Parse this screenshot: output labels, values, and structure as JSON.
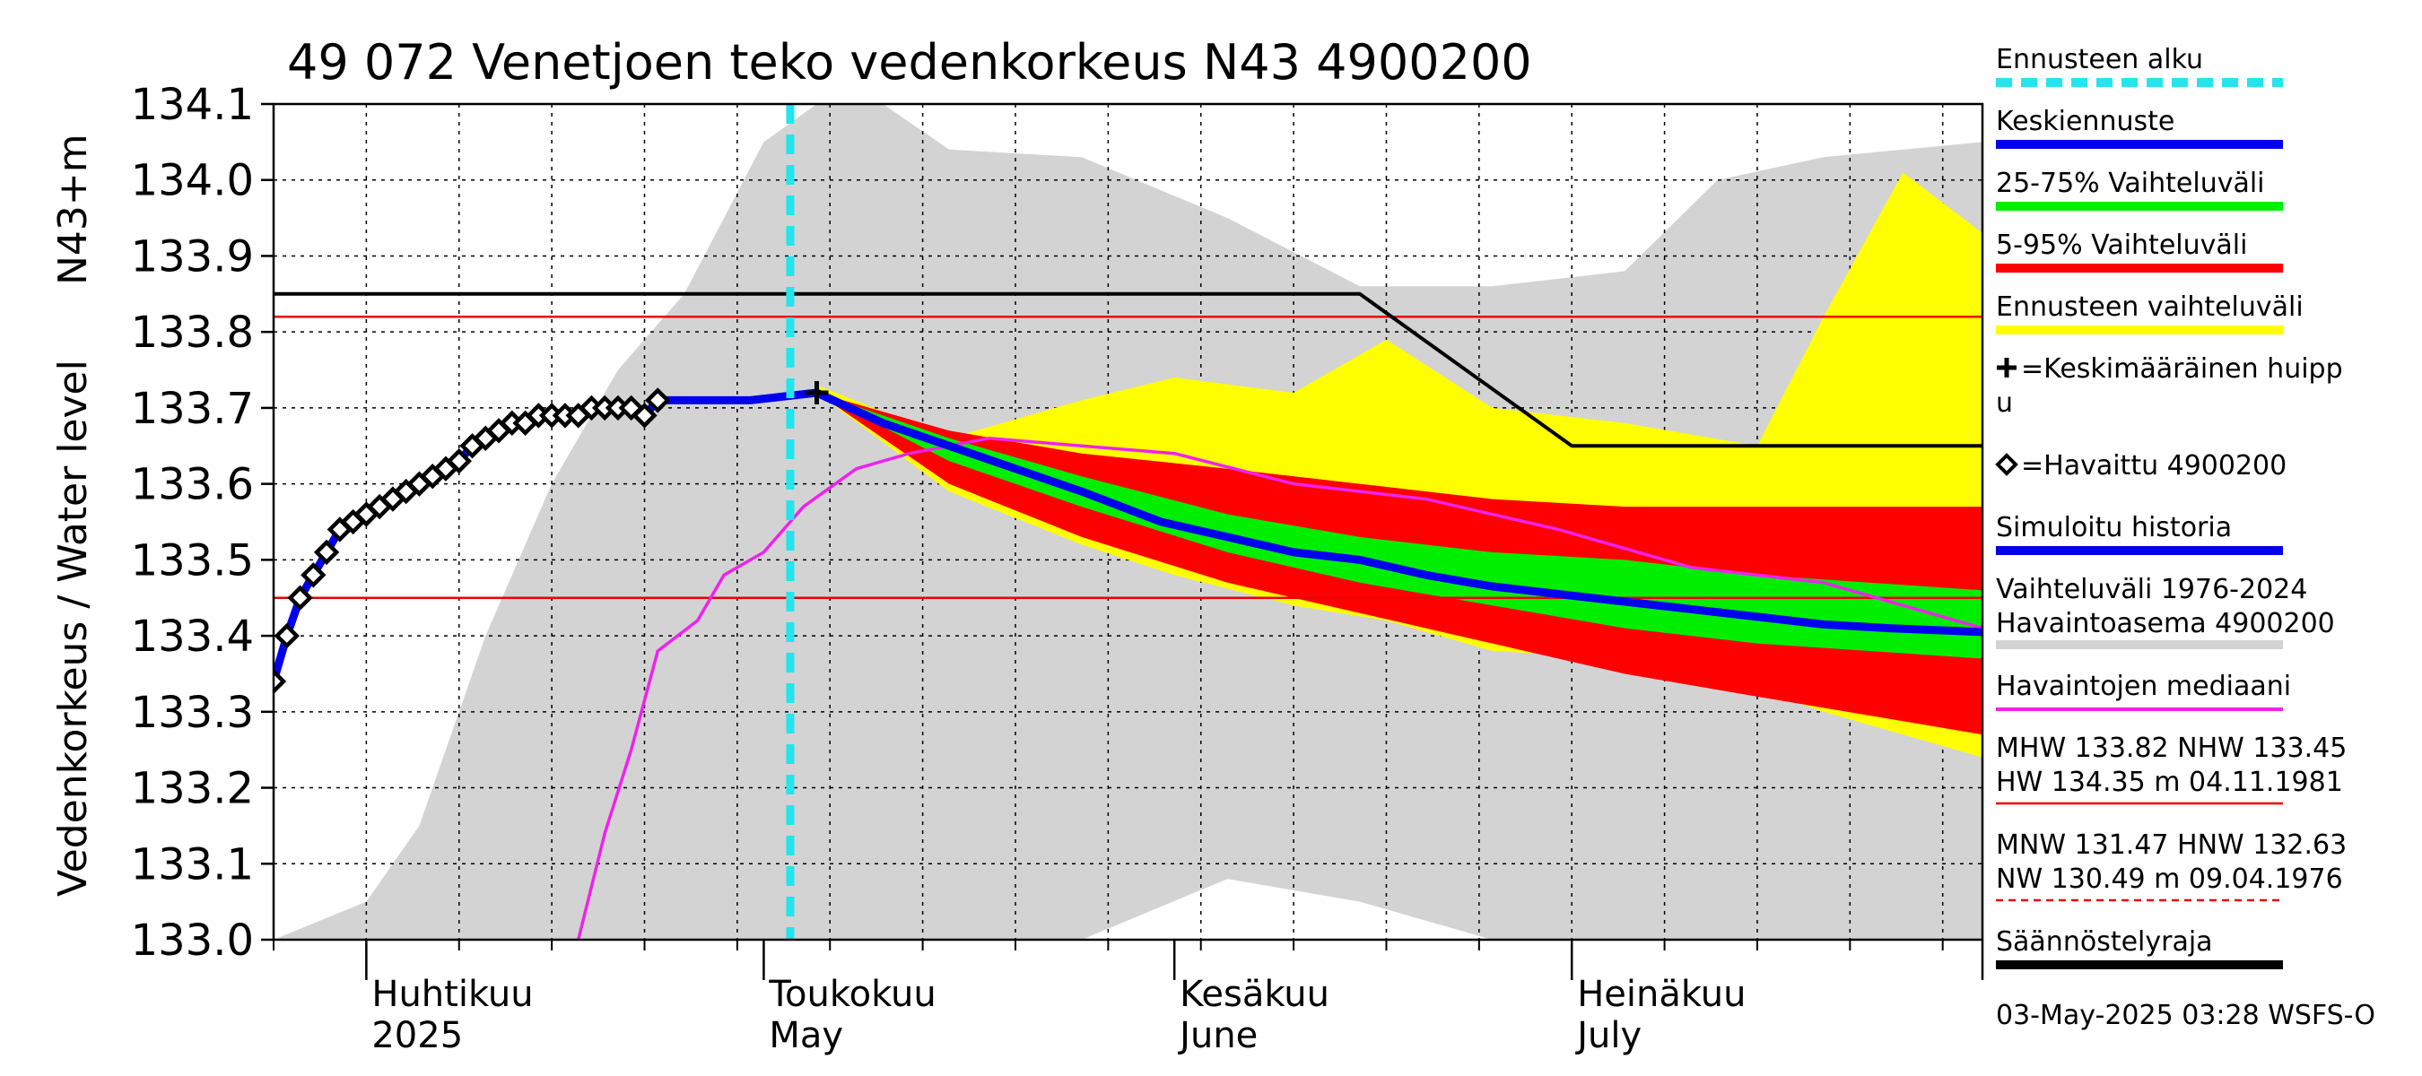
{
  "chart_data": {
    "type": "area",
    "title": "49 072 Venetjoen teko vedenkorkeus N43 4900200",
    "ylabel_primary": "Vedenkorkeus / Water level",
    "ylabel_unit": "N43+m",
    "ylim": [
      133.0,
      134.1
    ],
    "yticks": [
      "133.0",
      "133.1",
      "133.2",
      "133.3",
      "133.4",
      "133.5",
      "133.6",
      "133.7",
      "133.8",
      "133.9",
      "134.0",
      "134.1"
    ],
    "x_range": [
      "2025-03-25",
      "2025-08-01"
    ],
    "month_labels": [
      {
        "fi": "Huhtikuu",
        "en": "2025",
        "date": "2025-04-01"
      },
      {
        "fi": "Toukokuu",
        "en": "May",
        "date": "2025-05-01"
      },
      {
        "fi": "Kesäkuu",
        "en": "June",
        "date": "2025-06-01"
      },
      {
        "fi": "Heinäkuu",
        "en": "July",
        "date": "2025-07-01"
      }
    ],
    "grid": true,
    "forecast_start": "2025-05-03",
    "colors": {
      "forecast_start": "#22e5ee",
      "mean_forecast": "#0000ee",
      "range_25_75": "#00ee00",
      "range_5_95": "#ff0000",
      "forecast_range": "#ffff00",
      "observed": "#000000",
      "simulated_history": "#0000ee",
      "historical_range": "#d3d3d3",
      "median": "#ee22ee",
      "reference_lines": "#ee0000",
      "regulation": "#000000"
    },
    "reference_lines": {
      "MHW": 133.82,
      "NHW": 133.45
    },
    "regulation_limit": [
      {
        "x": "2025-03-25",
        "y": 133.85
      },
      {
        "x": "2025-06-15",
        "y": 133.85
      },
      {
        "x": "2025-07-01",
        "y": 133.65
      },
      {
        "x": "2025-08-01",
        "y": 133.65
      }
    ],
    "observed": [
      {
        "x": "2025-03-25",
        "y": 133.34
      },
      {
        "x": "2025-03-26",
        "y": 133.4
      },
      {
        "x": "2025-03-27",
        "y": 133.45
      },
      {
        "x": "2025-03-28",
        "y": 133.48
      },
      {
        "x": "2025-03-29",
        "y": 133.51
      },
      {
        "x": "2025-03-30",
        "y": 133.54
      },
      {
        "x": "2025-03-31",
        "y": 133.55
      },
      {
        "x": "2025-04-01",
        "y": 133.56
      },
      {
        "x": "2025-04-02",
        "y": 133.57
      },
      {
        "x": "2025-04-03",
        "y": 133.58
      },
      {
        "x": "2025-04-04",
        "y": 133.59
      },
      {
        "x": "2025-04-05",
        "y": 133.6
      },
      {
        "x": "2025-04-06",
        "y": 133.61
      },
      {
        "x": "2025-04-07",
        "y": 133.62
      },
      {
        "x": "2025-04-08",
        "y": 133.63
      },
      {
        "x": "2025-04-09",
        "y": 133.65
      },
      {
        "x": "2025-04-10",
        "y": 133.66
      },
      {
        "x": "2025-04-11",
        "y": 133.67
      },
      {
        "x": "2025-04-12",
        "y": 133.68
      },
      {
        "x": "2025-04-13",
        "y": 133.68
      },
      {
        "x": "2025-04-14",
        "y": 133.69
      },
      {
        "x": "2025-04-15",
        "y": 133.69
      },
      {
        "x": "2025-04-16",
        "y": 133.69
      },
      {
        "x": "2025-04-17",
        "y": 133.69
      },
      {
        "x": "2025-04-18",
        "y": 133.7
      },
      {
        "x": "2025-04-19",
        "y": 133.7
      },
      {
        "x": "2025-04-20",
        "y": 133.7
      },
      {
        "x": "2025-04-21",
        "y": 133.7
      },
      {
        "x": "2025-04-22",
        "y": 133.69
      },
      {
        "x": "2025-04-23",
        "y": 133.71
      }
    ],
    "mean_peak": {
      "x": "2025-05-05",
      "y": 133.72
    },
    "mean_forecast": [
      {
        "x": "2025-04-23",
        "y": 133.71
      },
      {
        "x": "2025-04-30",
        "y": 133.71
      },
      {
        "x": "2025-05-05",
        "y": 133.72
      },
      {
        "x": "2025-05-10",
        "y": 133.68
      },
      {
        "x": "2025-05-15",
        "y": 133.65
      },
      {
        "x": "2025-05-20",
        "y": 133.62
      },
      {
        "x": "2025-05-25",
        "y": 133.59
      },
      {
        "x": "2025-05-31",
        "y": 133.55
      },
      {
        "x": "2025-06-05",
        "y": 133.53
      },
      {
        "x": "2025-06-10",
        "y": 133.51
      },
      {
        "x": "2025-06-15",
        "y": 133.5
      },
      {
        "x": "2025-06-20",
        "y": 133.48
      },
      {
        "x": "2025-06-25",
        "y": 133.465
      },
      {
        "x": "2025-06-30",
        "y": 133.455
      },
      {
        "x": "2025-07-05",
        "y": 133.445
      },
      {
        "x": "2025-07-10",
        "y": 133.435
      },
      {
        "x": "2025-07-15",
        "y": 133.425
      },
      {
        "x": "2025-07-20",
        "y": 133.415
      },
      {
        "x": "2025-07-25",
        "y": 133.41
      },
      {
        "x": "2025-08-01",
        "y": 133.405
      }
    ],
    "range_25_75": [
      {
        "x": "2025-05-05",
        "lo": 133.72,
        "hi": 133.72
      },
      {
        "x": "2025-05-15",
        "lo": 133.63,
        "hi": 133.66
      },
      {
        "x": "2025-05-25",
        "lo": 133.57,
        "hi": 133.61
      },
      {
        "x": "2025-06-05",
        "lo": 133.51,
        "hi": 133.56
      },
      {
        "x": "2025-06-15",
        "lo": 133.47,
        "hi": 133.53
      },
      {
        "x": "2025-06-25",
        "lo": 133.44,
        "hi": 133.51
      },
      {
        "x": "2025-07-05",
        "lo": 133.41,
        "hi": 133.5
      },
      {
        "x": "2025-07-15",
        "lo": 133.39,
        "hi": 133.48
      },
      {
        "x": "2025-08-01",
        "lo": 133.37,
        "hi": 133.46
      }
    ],
    "range_5_95": [
      {
        "x": "2025-05-05",
        "lo": 133.72,
        "hi": 133.72
      },
      {
        "x": "2025-05-15",
        "lo": 133.6,
        "hi": 133.67
      },
      {
        "x": "2025-05-25",
        "lo": 133.53,
        "hi": 133.64
      },
      {
        "x": "2025-06-05",
        "lo": 133.47,
        "hi": 133.62
      },
      {
        "x": "2025-06-15",
        "lo": 133.43,
        "hi": 133.6
      },
      {
        "x": "2025-06-25",
        "lo": 133.39,
        "hi": 133.58
      },
      {
        "x": "2025-07-05",
        "lo": 133.35,
        "hi": 133.57
      },
      {
        "x": "2025-07-15",
        "lo": 133.32,
        "hi": 133.57
      },
      {
        "x": "2025-08-01",
        "lo": 133.27,
        "hi": 133.57
      }
    ],
    "forecast_range": [
      {
        "x": "2025-05-05",
        "lo": 133.72,
        "hi": 133.73
      },
      {
        "x": "2025-05-15",
        "lo": 133.59,
        "hi": 133.66
      },
      {
        "x": "2025-05-25",
        "lo": 133.52,
        "hi": 133.71
      },
      {
        "x": "2025-06-01",
        "lo": 133.48,
        "hi": 133.74
      },
      {
        "x": "2025-06-10",
        "lo": 133.44,
        "hi": 133.72
      },
      {
        "x": "2025-06-17",
        "lo": 133.42,
        "hi": 133.79
      },
      {
        "x": "2025-06-25",
        "lo": 133.38,
        "hi": 133.7
      },
      {
        "x": "2025-07-05",
        "lo": 133.37,
        "hi": 133.68
      },
      {
        "x": "2025-07-15",
        "lo": 133.33,
        "hi": 133.65
      },
      {
        "x": "2025-07-20",
        "lo": 133.3,
        "hi": 133.82
      },
      {
        "x": "2025-07-26",
        "lo": 133.27,
        "hi": 134.01
      },
      {
        "x": "2025-08-01",
        "lo": 133.24,
        "hi": 133.93
      }
    ],
    "historical_range": [
      {
        "x": "2025-03-25",
        "lo": 133.0,
        "hi": 133.0
      },
      {
        "x": "2025-04-01",
        "lo": 133.0,
        "hi": 133.05
      },
      {
        "x": "2025-04-05",
        "lo": 133.0,
        "hi": 133.15
      },
      {
        "x": "2025-04-10",
        "lo": 133.0,
        "hi": 133.4
      },
      {
        "x": "2025-04-15",
        "lo": 133.0,
        "hi": 133.6
      },
      {
        "x": "2025-04-20",
        "lo": 133.0,
        "hi": 133.75
      },
      {
        "x": "2025-04-25",
        "lo": 133.0,
        "hi": 133.85
      },
      {
        "x": "2025-05-01",
        "lo": 133.0,
        "hi": 134.05
      },
      {
        "x": "2025-05-05",
        "lo": 133.0,
        "hi": 134.1
      },
      {
        "x": "2025-05-10",
        "lo": 133.0,
        "hi": 134.1
      },
      {
        "x": "2025-05-15",
        "lo": 133.0,
        "hi": 134.04
      },
      {
        "x": "2025-05-25",
        "lo": 133.0,
        "hi": 134.03
      },
      {
        "x": "2025-06-05",
        "lo": 133.08,
        "hi": 133.95
      },
      {
        "x": "2025-06-15",
        "lo": 133.05,
        "hi": 133.86
      },
      {
        "x": "2025-06-25",
        "lo": 133.0,
        "hi": 133.86
      },
      {
        "x": "2025-07-05",
        "lo": 133.0,
        "hi": 133.88
      },
      {
        "x": "2025-07-12",
        "lo": 133.0,
        "hi": 134.0
      },
      {
        "x": "2025-07-20",
        "lo": 133.0,
        "hi": 134.03
      },
      {
        "x": "2025-08-01",
        "lo": 133.0,
        "hi": 134.05
      }
    ],
    "median": [
      {
        "x": "2025-04-17",
        "y": 133.0
      },
      {
        "x": "2025-04-19",
        "y": 133.14
      },
      {
        "x": "2025-04-21",
        "y": 133.25
      },
      {
        "x": "2025-04-23",
        "y": 133.38
      },
      {
        "x": "2025-04-26",
        "y": 133.42
      },
      {
        "x": "2025-04-28",
        "y": 133.48
      },
      {
        "x": "2025-05-01",
        "y": 133.51
      },
      {
        "x": "2025-05-04",
        "y": 133.57
      },
      {
        "x": "2025-05-08",
        "y": 133.62
      },
      {
        "x": "2025-05-12",
        "y": 133.64
      },
      {
        "x": "2025-05-18",
        "y": 133.66
      },
      {
        "x": "2025-05-25",
        "y": 133.65
      },
      {
        "x": "2025-06-01",
        "y": 133.64
      },
      {
        "x": "2025-06-10",
        "y": 133.6
      },
      {
        "x": "2025-06-20",
        "y": 133.58
      },
      {
        "x": "2025-06-30",
        "y": 133.54
      },
      {
        "x": "2025-07-10",
        "y": 133.49
      },
      {
        "x": "2025-07-20",
        "y": 133.47
      },
      {
        "x": "2025-07-28",
        "y": 133.43
      },
      {
        "x": "2025-08-01",
        "y": 133.41
      }
    ],
    "legend": [
      {
        "label": "Ennusteen alku",
        "style": "dash",
        "color": "#22e5ee"
      },
      {
        "label": "Keskiennuste",
        "style": "line",
        "color": "#0000ee"
      },
      {
        "label": "25-75% Vaihteluväli",
        "style": "line",
        "color": "#00ee00"
      },
      {
        "label": "5-95% Vaihteluväli",
        "style": "line",
        "color": "#ff0000"
      },
      {
        "label": "Ennusteen vaihteluväli",
        "style": "line",
        "color": "#ffff00"
      },
      {
        "label": "=Keskimääräinen huipp",
        "label2": "u",
        "style": "plus",
        "color": "#000000"
      },
      {
        "label": "=Havaittu 4900200",
        "style": "diamond",
        "color": "#000000"
      },
      {
        "label": "Simuloitu historia",
        "style": "line",
        "color": "#0000ee"
      },
      {
        "label": "Vaihteluväli 1976-2024",
        "label2": " Havaintoasema 4900200",
        "style": "line",
        "color": "#d3d3d3"
      },
      {
        "label": "Havaintojen mediaani",
        "style": "thin",
        "color": "#ee22ee"
      },
      {
        "label": "MHW 133.82 NHW 133.45",
        "label2": "HW 134.35 m 04.11.1981",
        "style": "thinred",
        "color": "#ee0000"
      },
      {
        "label": "MNW 131.47 HNW 132.63",
        "label2": "NW 130.49 m 09.04.1976",
        "style": "dashred",
        "color": "#ee0000"
      },
      {
        "label": "Säännöstelyraja",
        "style": "line",
        "color": "#000000"
      }
    ],
    "legend_position": "right"
  },
  "footer": "03-May-2025 03:28 WSFS-O"
}
